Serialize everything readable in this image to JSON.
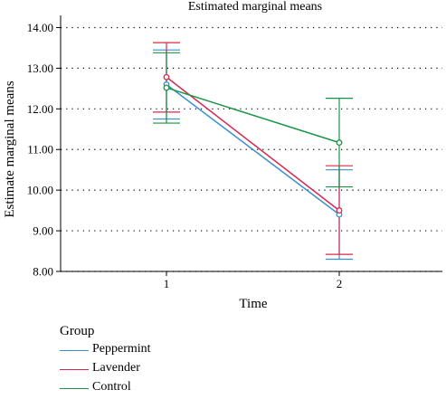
{
  "chart_data": {
    "type": "line",
    "title": "Estimated marginal means",
    "xlabel": "Time",
    "ylabel": "Estimate marginal means",
    "categories": [
      "1",
      "2"
    ],
    "ylim": [
      8.0,
      14.3
    ],
    "yticks": [
      "8.00",
      "9.00",
      "10.00",
      "11.00",
      "12.00",
      "13.00",
      "14.00"
    ],
    "grid": "horizontal dotted",
    "legend_title": "Group",
    "legend_position": "bottom-left",
    "series": [
      {
        "name": "Peppermint",
        "color": "#3a8fd0",
        "values": [
          12.6,
          9.4
        ],
        "ci_low": [
          11.75,
          8.3
        ],
        "ci_high": [
          13.45,
          10.5
        ]
      },
      {
        "name": "Lavender",
        "color": "#d8284e",
        "values": [
          12.78,
          9.5
        ],
        "ci_low": [
          11.92,
          8.42
        ],
        "ci_high": [
          13.63,
          10.6
        ]
      },
      {
        "name": "Control",
        "color": "#1a9444",
        "values": [
          12.52,
          11.17
        ],
        "ci_low": [
          11.65,
          10.08
        ],
        "ci_high": [
          13.38,
          12.26
        ]
      }
    ]
  }
}
